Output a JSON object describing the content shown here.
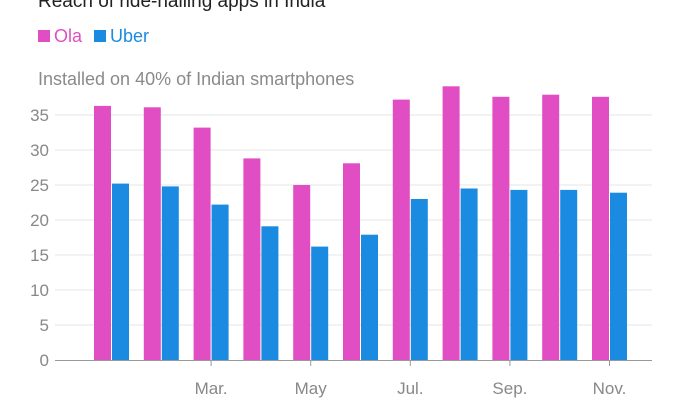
{
  "colors": {
    "ola": "#e14ec3",
    "uber": "#1a8be0",
    "grid": "#e6e6e6",
    "axis": "#999999",
    "text": "#888888"
  },
  "chart_data": {
    "type": "bar",
    "title": "Reach of ride-hailing apps in India",
    "annotation": "Installed on 40% of Indian smartphones",
    "categories": [
      "",
      "",
      "Mar.",
      "",
      "May",
      "",
      "Jul.",
      "",
      "Sep.",
      "",
      "Nov."
    ],
    "series": [
      {
        "name": "Ola",
        "color": "#e14ec3",
        "values": [
          36.3,
          36.1,
          33.2,
          28.8,
          25.0,
          28.1,
          37.2,
          39.1,
          37.6,
          37.9,
          37.6
        ]
      },
      {
        "name": "Uber",
        "color": "#1a8be0",
        "values": [
          25.2,
          24.8,
          22.2,
          19.1,
          16.2,
          17.9,
          23.0,
          24.5,
          24.3,
          24.3,
          23.9
        ]
      }
    ],
    "yticks": [
      0,
      5,
      10,
      15,
      20,
      25,
      30,
      35
    ],
    "ylim": [
      0,
      40
    ],
    "xlabel": "",
    "ylabel": "",
    "grid": true,
    "legend": "top-left"
  }
}
